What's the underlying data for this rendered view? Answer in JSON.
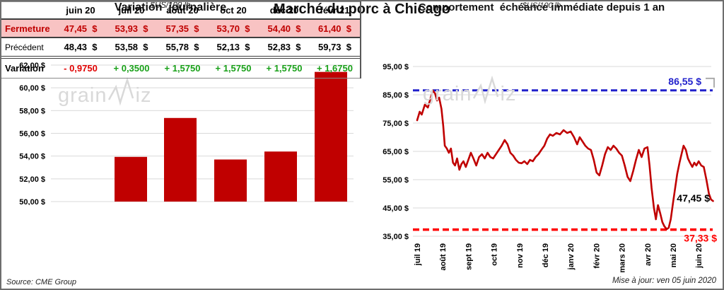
{
  "title": "Marché du porc à Chicago",
  "watermark": {
    "part1": "grain",
    "part2": "iz",
    "color": "#D9D9D9"
  },
  "footer": {
    "source": "Source: CME Group",
    "updated": "Mise à jour: ven 05 juin 2020"
  },
  "table": {
    "columns": [
      "juin 20",
      "juil 20",
      "août 20",
      "oct 20",
      "déc 20",
      "févr 21"
    ],
    "close_bg": "#F8C3C3",
    "close_color": "#C00000",
    "negative_color": "#E00000",
    "positive_color": "#18A018",
    "rows": [
      {
        "label": "Fermeture",
        "type": "close",
        "values": [
          "47,45  $",
          "53,93  $",
          "57,35  $",
          "53,70  $",
          "54,40  $",
          "61,40  $"
        ]
      },
      {
        "label": "Précédent",
        "type": "previous",
        "values": [
          "48,43  $",
          "53,58  $",
          "55,78  $",
          "52,13  $",
          "52,83  $",
          "59,73  $"
        ]
      },
      {
        "label": "Variation",
        "type": "variation",
        "values": [
          {
            "text": "- 0,9750",
            "dir": "down"
          },
          {
            "text": "+ 0,3500",
            "dir": "up"
          },
          {
            "text": "+ 1,5750",
            "dir": "up"
          },
          {
            "text": "+ 1,5750",
            "dir": "up"
          },
          {
            "text": "+ 1,5750",
            "dir": "up"
          },
          {
            "text": "+ 1,6750",
            "dir": "up"
          }
        ]
      }
    ]
  },
  "chart_data": [
    {
      "type": "bar",
      "title": "Variation  journalière",
      "subtitle": "- $US/100 lb -",
      "categories": [
        "juin 20",
        "juil 20",
        "août 20",
        "oct 20",
        "déc 20",
        "févr 21"
      ],
      "values": [
        47.45,
        53.93,
        57.35,
        53.7,
        54.4,
        61.4
      ],
      "ylim": [
        50,
        62
      ],
      "ytick_step": 2,
      "ytick_suffix": " $",
      "bar_color": "#C00000",
      "grid_color": "#D9D9D9",
      "note": "juin 20 value 47,45 is below the 50,00 axis minimum so its bar is not drawn"
    },
    {
      "type": "line",
      "title": "Comportement  échéance immédiate depuis 1 an",
      "subtitle": "- $US/100 lb -",
      "x_ticks": [
        "juil 19",
        "août 19",
        "sept 19",
        "oct 19",
        "nov 19",
        "déc 19",
        "janv 20",
        "févr 20",
        "mars 20",
        "avr 20",
        "mai 20",
        "juin 20"
      ],
      "ylim": [
        35,
        95
      ],
      "ytick_step": 10,
      "line_color": "#C00000",
      "grid_color": "#D9D9D9",
      "max_line": {
        "value": 86.55,
        "label": "86,55 $",
        "color": "#2222CC"
      },
      "min_line": {
        "value": 37.33,
        "label": "37,33 $",
        "color": "#FF0000"
      },
      "last_point_label": {
        "value": 47.45,
        "label": "47,45 $"
      },
      "points": [
        [
          0,
          76
        ],
        [
          0.1,
          79
        ],
        [
          0.18,
          78
        ],
        [
          0.3,
          81.5
        ],
        [
          0.42,
          80.5
        ],
        [
          0.5,
          83
        ],
        [
          0.61,
          86.5
        ],
        [
          0.7,
          85.5
        ],
        [
          0.78,
          83
        ],
        [
          0.86,
          84
        ],
        [
          0.95,
          80
        ],
        [
          1.02,
          74
        ],
        [
          1.08,
          67
        ],
        [
          1.16,
          66
        ],
        [
          1.24,
          64.5
        ],
        [
          1.32,
          66
        ],
        [
          1.4,
          61
        ],
        [
          1.48,
          60
        ],
        [
          1.56,
          62.5
        ],
        [
          1.65,
          58.5
        ],
        [
          1.73,
          60.5
        ],
        [
          1.81,
          61.5
        ],
        [
          1.9,
          59.5
        ],
        [
          2,
          62
        ],
        [
          2.1,
          64.5
        ],
        [
          2.2,
          62.5
        ],
        [
          2.31,
          60
        ],
        [
          2.42,
          63
        ],
        [
          2.53,
          64
        ],
        [
          2.64,
          62.5
        ],
        [
          2.75,
          64.5
        ],
        [
          2.86,
          63
        ],
        [
          2.97,
          62.5
        ],
        [
          3.08,
          64
        ],
        [
          3.19,
          65.5
        ],
        [
          3.3,
          67
        ],
        [
          3.42,
          69
        ],
        [
          3.53,
          67.5
        ],
        [
          3.64,
          64.5
        ],
        [
          3.75,
          63.5
        ],
        [
          3.86,
          62
        ],
        [
          3.97,
          61
        ],
        [
          4.08,
          60.8
        ],
        [
          4.19,
          61.5
        ],
        [
          4.3,
          60.5
        ],
        [
          4.41,
          62
        ],
        [
          4.52,
          61.5
        ],
        [
          4.63,
          63
        ],
        [
          4.74,
          64
        ],
        [
          4.85,
          65.5
        ],
        [
          4.97,
          67
        ],
        [
          5.08,
          69.5
        ],
        [
          5.19,
          71
        ],
        [
          5.3,
          70.5
        ],
        [
          5.44,
          71.5
        ],
        [
          5.58,
          71
        ],
        [
          5.72,
          72.5
        ],
        [
          5.86,
          71.5
        ],
        [
          6,
          72
        ],
        [
          6.13,
          70
        ],
        [
          6.25,
          67.5
        ],
        [
          6.35,
          70
        ],
        [
          6.46,
          68.5
        ],
        [
          6.57,
          67
        ],
        [
          6.68,
          66
        ],
        [
          6.79,
          65.5
        ],
        [
          6.9,
          62
        ],
        [
          7.01,
          57.5
        ],
        [
          7.12,
          56.5
        ],
        [
          7.23,
          60
        ],
        [
          7.34,
          64
        ],
        [
          7.45,
          66.5
        ],
        [
          7.56,
          65.5
        ],
        [
          7.67,
          67
        ],
        [
          7.78,
          66
        ],
        [
          7.89,
          64.5
        ],
        [
          8,
          63.5
        ],
        [
          8.11,
          60
        ],
        [
          8.22,
          56
        ],
        [
          8.33,
          54.5
        ],
        [
          8.44,
          58
        ],
        [
          8.55,
          62
        ],
        [
          8.66,
          65.5
        ],
        [
          8.77,
          63
        ],
        [
          8.88,
          66
        ],
        [
          9,
          66.5
        ],
        [
          9.08,
          60
        ],
        [
          9.16,
          52
        ],
        [
          9.25,
          45
        ],
        [
          9.33,
          41
        ],
        [
          9.41,
          46
        ],
        [
          9.5,
          43
        ],
        [
          9.58,
          40
        ],
        [
          9.66,
          38.5
        ],
        [
          9.75,
          37.5
        ],
        [
          9.83,
          38
        ],
        [
          9.91,
          41
        ],
        [
          10,
          47
        ],
        [
          10.08,
          52
        ],
        [
          10.16,
          57
        ],
        [
          10.25,
          61
        ],
        [
          10.33,
          64
        ],
        [
          10.41,
          67
        ],
        [
          10.5,
          65.5
        ],
        [
          10.58,
          62.5
        ],
        [
          10.66,
          61
        ],
        [
          10.75,
          59.5
        ],
        [
          10.83,
          61
        ],
        [
          10.91,
          60
        ],
        [
          11,
          61.5
        ],
        [
          11.1,
          60
        ],
        [
          11.2,
          59.5
        ],
        [
          11.3,
          55
        ],
        [
          11.4,
          50
        ],
        [
          11.48,
          48
        ],
        [
          11.56,
          47.45
        ]
      ]
    }
  ]
}
